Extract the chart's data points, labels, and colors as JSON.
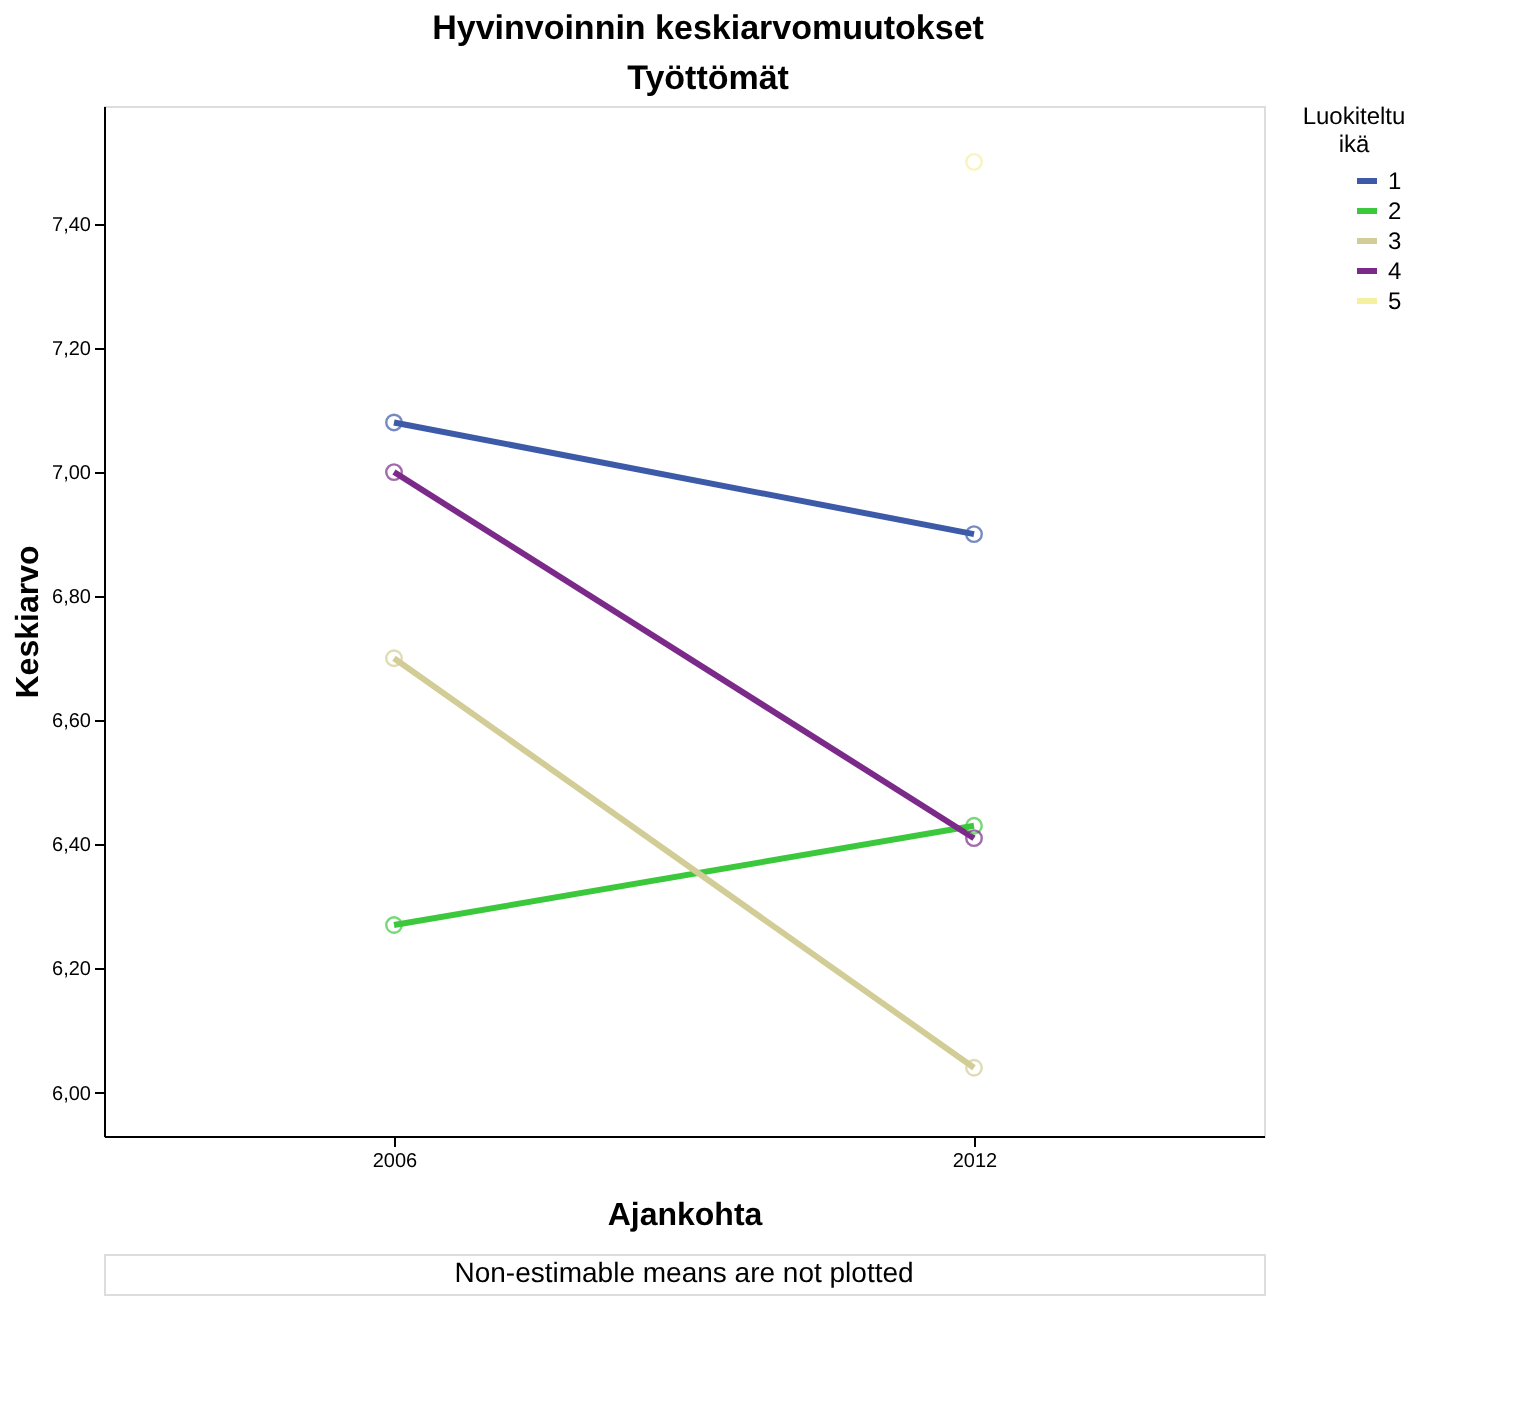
{
  "chart_data": {
    "type": "line",
    "title": "Hyvinvoinnin keskiarvomuutokset",
    "subtitle": "Työttömät",
    "xlabel": "Ajankohta",
    "ylabel": "Keskiarvo",
    "legend_title": "Luokiteltu ikä",
    "categories": [
      "2006",
      "2012"
    ],
    "series": [
      {
        "name": "1",
        "color": "#3c5aa8",
        "values": [
          7.08,
          6.9
        ]
      },
      {
        "name": "2",
        "color": "#3cc83c",
        "values": [
          6.27,
          6.43
        ]
      },
      {
        "name": "3",
        "color": "#d2cd96",
        "values": [
          6.7,
          6.04
        ]
      },
      {
        "name": "4",
        "color": "#7b2a8a",
        "values": [
          7.0,
          6.41
        ]
      },
      {
        "name": "5",
        "color": "#f5f0a0",
        "values": [
          null,
          7.5
        ]
      }
    ],
    "ylim": [
      5.93,
      7.59
    ],
    "yticks": [
      {
        "value": 6.0,
        "label": "6,00"
      },
      {
        "value": 6.2,
        "label": "6,20"
      },
      {
        "value": 6.4,
        "label": "6,40"
      },
      {
        "value": 6.6,
        "label": "6,60"
      },
      {
        "value": 6.8,
        "label": "6,80"
      },
      {
        "value": 7.0,
        "label": "7,00"
      },
      {
        "value": 7.2,
        "label": "7,20"
      },
      {
        "value": 7.4,
        "label": "7,40"
      }
    ],
    "grid": false,
    "legend": "top right",
    "marker": "circle",
    "line_style": "solid",
    "annotations": [
      "Non-estimable means are not plotted"
    ]
  }
}
